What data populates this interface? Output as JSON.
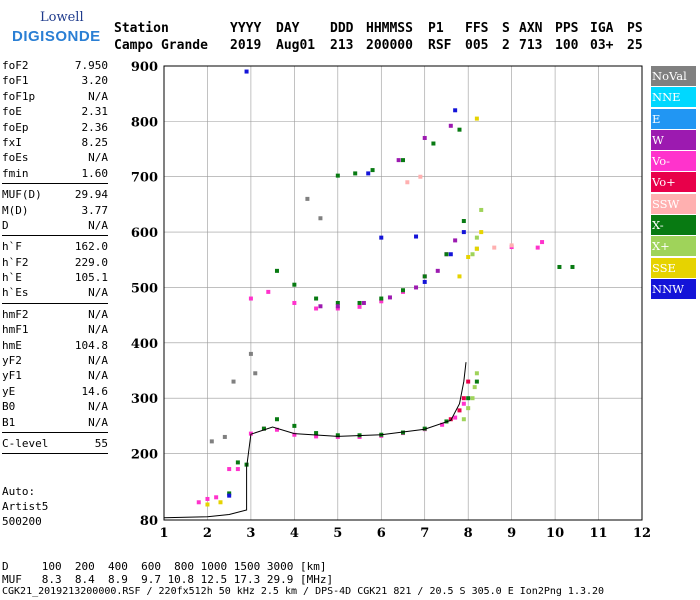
{
  "logo": {
    "line1": "Lowell",
    "line2": "DIGISONDE"
  },
  "header": {
    "row1": [
      "Station",
      "YYYY",
      "DAY",
      "DDD",
      "HHMMSS",
      "P1",
      "FFS",
      "S",
      "AXN",
      "PPS",
      "IGA",
      "PS"
    ],
    "row2": [
      "Campo Grande",
      "2019",
      "Aug01",
      "213",
      "200000",
      "RSF",
      "005",
      "2",
      "713",
      "100",
      "03+",
      "25"
    ]
  },
  "params": {
    "group1": [
      {
        "k": "foF2",
        "v": "7.950"
      },
      {
        "k": "foF1",
        "v": "3.20"
      },
      {
        "k": "foF1p",
        "v": "N/A"
      },
      {
        "k": "foE",
        "v": "2.31"
      },
      {
        "k": "foEp",
        "v": "2.36"
      },
      {
        "k": "fxI",
        "v": "8.25"
      },
      {
        "k": "foEs",
        "v": "N/A"
      },
      {
        "k": "fmin",
        "v": "1.60"
      }
    ],
    "group2": [
      {
        "k": "MUF(D)",
        "v": "29.94"
      },
      {
        "k": "M(D)",
        "v": "3.77"
      },
      {
        "k": "D",
        "v": "N/A"
      }
    ],
    "group3": [
      {
        "k": "h`F",
        "v": "162.0"
      },
      {
        "k": "h`F2",
        "v": "229.0"
      },
      {
        "k": "h`E",
        "v": "105.1"
      },
      {
        "k": "h`Es",
        "v": "N/A"
      }
    ],
    "group4": [
      {
        "k": "hmF2",
        "v": "N/A"
      },
      {
        "k": "hmF1",
        "v": "N/A"
      },
      {
        "k": "hmE",
        "v": "104.8"
      },
      {
        "k": "yF2",
        "v": "N/A"
      },
      {
        "k": "yF1",
        "v": "N/A"
      },
      {
        "k": "yE",
        "v": "14.6"
      },
      {
        "k": "B0",
        "v": "N/A"
      },
      {
        "k": "B1",
        "v": "N/A"
      }
    ],
    "group5": [
      {
        "k": "C-level",
        "v": "55"
      }
    ]
  },
  "auto": {
    "line1": "Auto:",
    "line2": "Artist5",
    "line3": "500200"
  },
  "legend": [
    {
      "label": "NoVal",
      "color": "#808080"
    },
    {
      "label": "NNE",
      "color": "#00d8ff"
    },
    {
      "label": "E",
      "color": "#2196f3"
    },
    {
      "label": "W",
      "color": "#9c1ab0"
    },
    {
      "label": "Vo-",
      "color": "#ff33cc"
    },
    {
      "label": "Vo+",
      "color": "#e8004a"
    },
    {
      "label": "SSW",
      "color": "#ffb0b0"
    },
    {
      "label": "X-",
      "color": "#087a12"
    },
    {
      "label": "X+",
      "color": "#9fd35a"
    },
    {
      "label": "SSE",
      "color": "#e6d300"
    },
    {
      "label": "NNW",
      "color": "#1414d8"
    }
  ],
  "bottom": {
    "row1": "D     100  200  400  600  800 1000 1500 3000 [km]",
    "row2": "MUF   8.3  8.4  8.9  9.7 10.8 12.5 17.3 29.9 [MHz]",
    "row3": "CGK21_2019213200000.RSF / 220fx512h 50 kHz 2.5 km / DPS-4D CGK21 821 / 20.5 S 305.0 E Ion2Png 1.3.20"
  },
  "chart_data": {
    "type": "scatter",
    "xlim": [
      1,
      12
    ],
    "ylim": [
      80,
      900
    ],
    "x_ticks": [
      "1",
      "2",
      "3",
      "4",
      "5",
      "6",
      "7",
      "8",
      "9",
      "10",
      "11",
      "12"
    ],
    "y_ticks": [
      "80",
      "200",
      "300",
      "400",
      "500",
      "600",
      "700",
      "800",
      "900"
    ],
    "grid": true,
    "series": [
      {
        "name": "Vo-",
        "color": "#ff33cc",
        "points": [
          [
            1.8,
            112
          ],
          [
            2.0,
            118
          ],
          [
            2.2,
            121
          ],
          [
            2.5,
            172
          ],
          [
            2.7,
            172
          ],
          [
            3.0,
            236
          ],
          [
            3.3,
            245
          ],
          [
            3.6,
            243
          ],
          [
            4.0,
            234
          ],
          [
            4.5,
            231
          ],
          [
            5.0,
            230
          ],
          [
            5.5,
            230
          ],
          [
            6.0,
            232
          ],
          [
            6.5,
            237
          ],
          [
            7.0,
            244
          ],
          [
            7.4,
            252
          ],
          [
            7.7,
            265
          ],
          [
            7.9,
            290
          ],
          [
            3.0,
            480
          ],
          [
            3.4,
            492
          ],
          [
            4.0,
            472
          ],
          [
            4.5,
            462
          ],
          [
            5.0,
            462
          ],
          [
            5.5,
            465
          ],
          [
            6.0,
            475
          ],
          [
            6.5,
            492
          ],
          [
            7.0,
            520
          ],
          [
            7.5,
            560
          ],
          [
            9.0,
            573
          ],
          [
            9.6,
            572
          ],
          [
            9.7,
            582
          ]
        ]
      },
      {
        "name": "X-",
        "color": "#087a12",
        "points": [
          [
            2.5,
            128
          ],
          [
            2.7,
            184
          ],
          [
            2.9,
            180
          ],
          [
            3.3,
            245
          ],
          [
            3.6,
            262
          ],
          [
            4.0,
            250
          ],
          [
            4.5,
            237
          ],
          [
            5.0,
            233
          ],
          [
            5.5,
            233
          ],
          [
            6.0,
            234
          ],
          [
            6.5,
            238
          ],
          [
            7.0,
            245
          ],
          [
            7.5,
            258
          ],
          [
            8.0,
            300
          ],
          [
            8.2,
            330
          ],
          [
            3.6,
            530
          ],
          [
            4.0,
            505
          ],
          [
            4.5,
            480
          ],
          [
            5.0,
            472
          ],
          [
            5.5,
            472
          ],
          [
            6.0,
            480
          ],
          [
            6.5,
            495
          ],
          [
            7.0,
            520
          ],
          [
            7.5,
            560
          ],
          [
            7.9,
            620
          ],
          [
            5.0,
            702
          ],
          [
            5.4,
            706
          ],
          [
            5.8,
            712
          ],
          [
            6.5,
            730
          ],
          [
            7.2,
            760
          ],
          [
            7.8,
            785
          ],
          [
            10.1,
            537
          ],
          [
            10.4,
            537
          ]
        ]
      },
      {
        "name": "W",
        "color": "#9c1ab0",
        "points": [
          [
            4.6,
            466
          ],
          [
            5.0,
            466
          ],
          [
            5.6,
            472
          ],
          [
            6.2,
            482
          ],
          [
            6.8,
            500
          ],
          [
            7.3,
            530
          ],
          [
            7.7,
            585
          ],
          [
            6.4,
            730
          ],
          [
            7.0,
            770
          ],
          [
            7.6,
            792
          ]
        ]
      },
      {
        "name": "NNW",
        "color": "#1414d8",
        "points": [
          [
            2.5,
            124
          ],
          [
            7.0,
            510
          ],
          [
            7.6,
            560
          ],
          [
            7.9,
            600
          ],
          [
            6.0,
            590
          ],
          [
            6.8,
            592
          ],
          [
            7.7,
            820
          ],
          [
            5.7,
            706
          ],
          [
            2.9,
            890
          ]
        ]
      },
      {
        "name": "X+",
        "color": "#9fd35a",
        "points": [
          [
            7.9,
            262
          ],
          [
            8.0,
            282
          ],
          [
            8.1,
            300
          ],
          [
            8.15,
            320
          ],
          [
            8.2,
            345
          ],
          [
            8.1,
            560
          ],
          [
            8.2,
            590
          ],
          [
            8.3,
            640
          ],
          [
            8.2,
            570
          ]
        ]
      },
      {
        "name": "SSE",
        "color": "#e6d300",
        "points": [
          [
            2.0,
            108
          ],
          [
            2.3,
            112
          ],
          [
            7.8,
            520
          ],
          [
            8.0,
            555
          ],
          [
            8.2,
            570
          ],
          [
            8.3,
            600
          ],
          [
            8.2,
            805
          ]
        ]
      },
      {
        "name": "Vo+",
        "color": "#e8004a",
        "points": [
          [
            7.6,
            262
          ],
          [
            7.8,
            278
          ],
          [
            7.9,
            300
          ],
          [
            8.0,
            330
          ]
        ]
      },
      {
        "name": "SSW",
        "color": "#ffb0b0",
        "points": [
          [
            6.6,
            690
          ],
          [
            6.9,
            700
          ],
          [
            8.6,
            572
          ],
          [
            9.0,
            576
          ]
        ]
      },
      {
        "name": "NoVal",
        "color": "#808080",
        "points": [
          [
            3.0,
            380
          ],
          [
            3.1,
            345
          ],
          [
            2.1,
            222
          ],
          [
            2.4,
            230
          ],
          [
            2.6,
            330
          ],
          [
            4.6,
            625
          ],
          [
            4.3,
            660
          ]
        ]
      }
    ],
    "trace": [
      [
        1.0,
        84
      ],
      [
        2.0,
        86
      ],
      [
        2.5,
        90
      ],
      [
        2.9,
        98
      ],
      [
        2.9,
        175
      ],
      [
        3.0,
        235
      ],
      [
        3.5,
        248
      ],
      [
        4.0,
        236
      ],
      [
        5.0,
        231
      ],
      [
        6.0,
        234
      ],
      [
        7.0,
        244
      ],
      [
        7.6,
        260
      ],
      [
        7.8,
        290
      ],
      [
        7.9,
        330
      ],
      [
        7.95,
        365
      ]
    ]
  }
}
